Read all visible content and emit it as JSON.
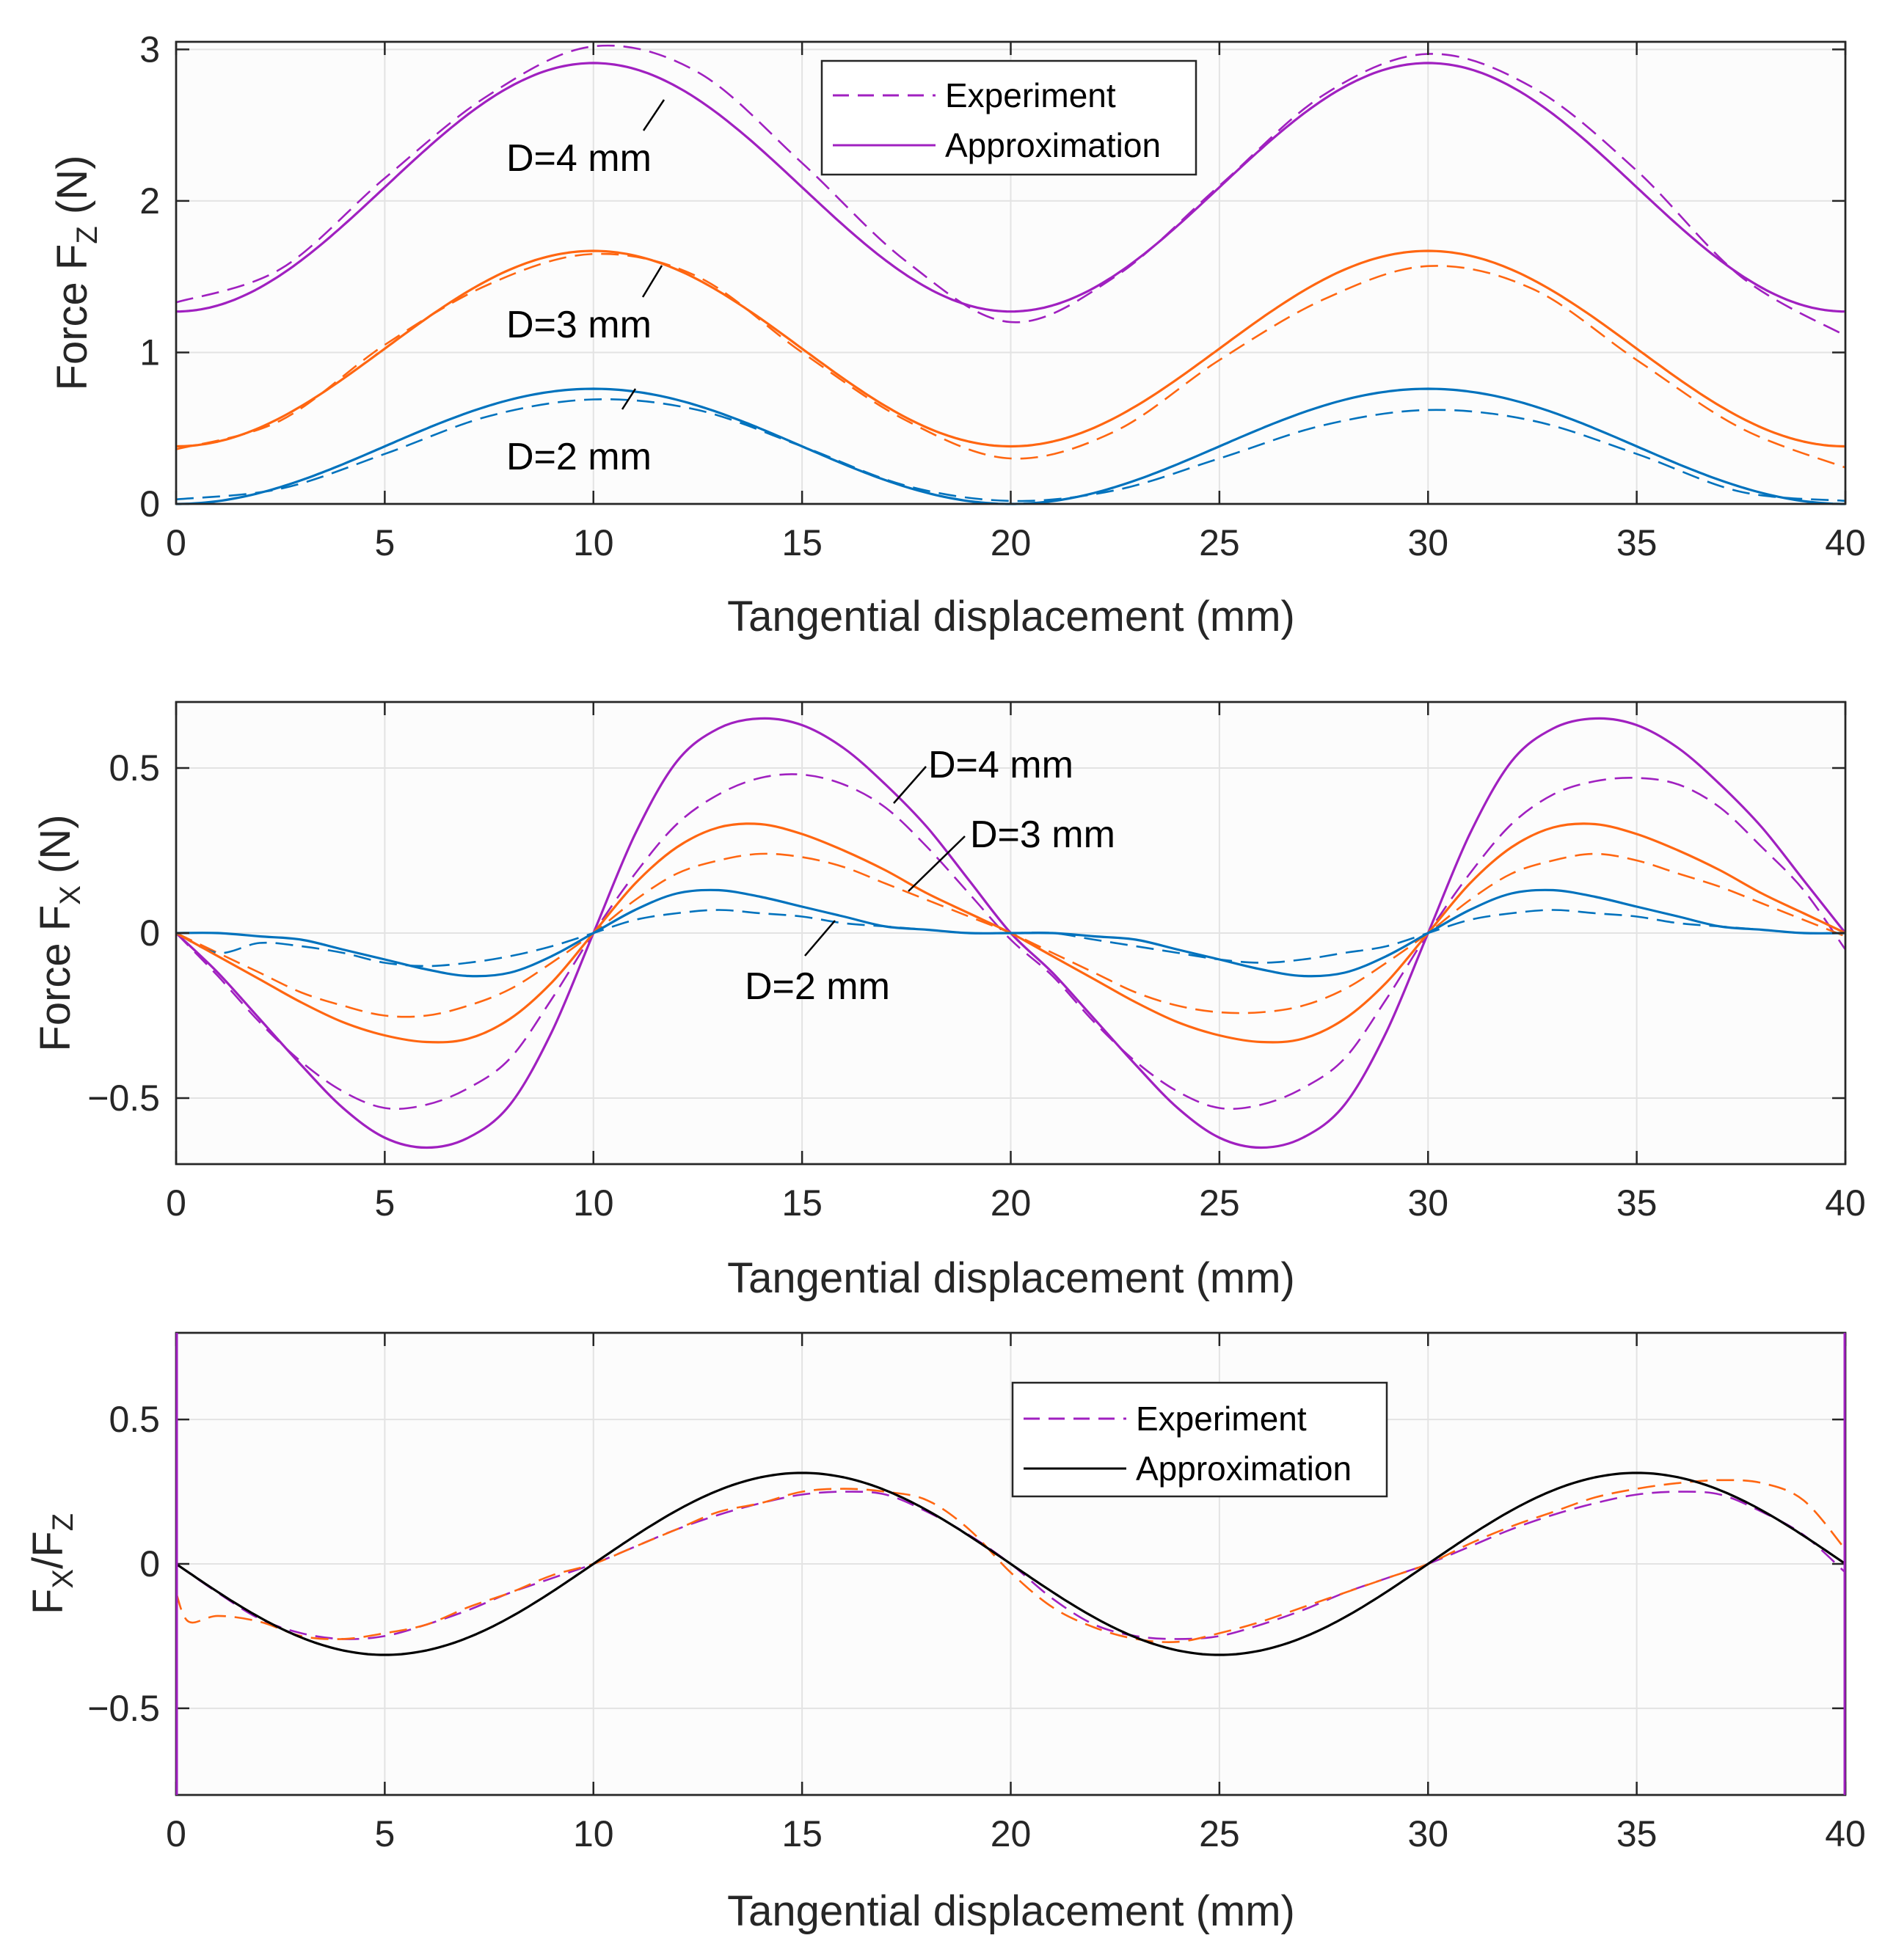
{
  "colors": {
    "d2": "#0072BD",
    "d3": "#FF6611",
    "d4": "#A020C0",
    "approx_black": "#000000",
    "axis": "#262626"
  },
  "chart_data": [
    {
      "type": "line",
      "ylabel_main": "Force F",
      "ylabel_sub": "Z",
      "ylabel_tail": " (N)",
      "xlabel": "Tangential displacement (mm)",
      "xlim": [
        0,
        40
      ],
      "ylim": [
        0,
        3.05
      ],
      "xticks": [
        0,
        5,
        10,
        15,
        20,
        25,
        30,
        35,
        40
      ],
      "yticks": [
        0,
        1,
        2,
        3
      ],
      "xtick_labels": [
        "0",
        "5",
        "10",
        "15",
        "20",
        "25",
        "30",
        "35",
        "40"
      ],
      "ytick_labels": [
        "0",
        "1",
        "2",
        "3"
      ],
      "legend": {
        "position": "top-center",
        "entries": [
          {
            "label": "Experiment",
            "style": "dashed",
            "color": "#A020C0"
          },
          {
            "label": "Approximation",
            "style": "solid",
            "color": "#A020C0"
          }
        ]
      },
      "annotations": [
        {
          "text": "D=4 mm"
        },
        {
          "text": "D=3 mm"
        },
        {
          "text": "D=2 mm"
        }
      ],
      "series": [
        {
          "name": "D=4 mm Approximation",
          "color": "#A020C0",
          "style": "solid",
          "model": "cosine",
          "min": 1.27,
          "max": 2.91,
          "period": 20,
          "phase_peak": 10
        },
        {
          "name": "D=4 mm Experiment",
          "color": "#A020C0",
          "style": "dashed",
          "x": [
            0,
            2.5,
            5,
            7.5,
            10,
            12.5,
            15,
            17.5,
            20,
            22.5,
            25,
            27.5,
            30,
            32.5,
            35,
            37.5,
            40
          ],
          "values": [
            1.33,
            1.55,
            2.15,
            2.7,
            3.02,
            2.85,
            2.25,
            1.6,
            1.2,
            1.5,
            2.1,
            2.7,
            2.97,
            2.75,
            2.2,
            1.5,
            1.11
          ]
        },
        {
          "name": "D=3 mm Approximation",
          "color": "#FF6611",
          "style": "solid",
          "model": "cosine",
          "min": 0.38,
          "max": 1.67,
          "period": 20,
          "phase_peak": 10
        },
        {
          "name": "D=3 mm Experiment",
          "color": "#FF6611",
          "style": "dashed",
          "x": [
            0,
            2.5,
            5,
            7.5,
            10,
            12.5,
            15,
            17.5,
            20,
            22.5,
            25,
            27.5,
            30,
            32.5,
            35,
            37.5,
            40
          ],
          "values": [
            0.36,
            0.55,
            1.05,
            1.45,
            1.65,
            1.5,
            1.0,
            0.55,
            0.3,
            0.48,
            0.95,
            1.35,
            1.57,
            1.42,
            0.95,
            0.5,
            0.24
          ]
        },
        {
          "name": "D=2 mm Approximation",
          "color": "#0072BD",
          "style": "solid",
          "model": "cosine",
          "min": 0.0,
          "max": 0.76,
          "period": 20,
          "phase_peak": 10
        },
        {
          "name": "D=2 mm Experiment",
          "color": "#0072BD",
          "style": "dashed",
          "x": [
            0,
            2.5,
            5,
            7.5,
            10,
            12.5,
            15,
            17.5,
            20,
            22.5,
            25,
            27.5,
            30,
            32.5,
            35,
            37.5,
            40
          ],
          "values": [
            0.03,
            0.1,
            0.33,
            0.58,
            0.69,
            0.62,
            0.38,
            0.12,
            0.02,
            0.09,
            0.3,
            0.52,
            0.62,
            0.55,
            0.33,
            0.08,
            0.02
          ]
        }
      ]
    },
    {
      "type": "line",
      "ylabel_main": "Force F",
      "ylabel_sub": "X",
      "ylabel_tail": "  (N)",
      "xlabel": "Tangential displacement (mm)",
      "xlim": [
        0,
        40
      ],
      "ylim": [
        -0.7,
        0.7
      ],
      "xticks": [
        0,
        5,
        10,
        15,
        20,
        25,
        30,
        35,
        40
      ],
      "yticks": [
        -0.5,
        0,
        0.5
      ],
      "xtick_labels": [
        "0",
        "5",
        "10",
        "15",
        "20",
        "25",
        "30",
        "35",
        "40"
      ],
      "ytick_labels": [
        "−0.5",
        "0",
        "0.5"
      ],
      "annotations": [
        {
          "text": "D=4 mm"
        },
        {
          "text": "D=3 mm"
        },
        {
          "text": "D=2 mm"
        }
      ],
      "series": [
        {
          "name": "D=4 mm Approximation",
          "color": "#A020C0",
          "style": "solid",
          "x": [
            0,
            1,
            2,
            3,
            4,
            5,
            6,
            7,
            8,
            9,
            10,
            11,
            12,
            13,
            14,
            15,
            16,
            17,
            18,
            19,
            20,
            21,
            22,
            23,
            24,
            25,
            26,
            27,
            28,
            29,
            30,
            31,
            32,
            33,
            34,
            35,
            36,
            37,
            38,
            39,
            40
          ],
          "values": [
            0,
            -0.12,
            -0.26,
            -0.4,
            -0.53,
            -0.62,
            -0.65,
            -0.62,
            -0.52,
            -0.3,
            0,
            0.3,
            0.52,
            0.62,
            0.65,
            0.63,
            0.56,
            0.45,
            0.32,
            0.16,
            0,
            -0.12,
            -0.26,
            -0.4,
            -0.53,
            -0.62,
            -0.65,
            -0.62,
            -0.52,
            -0.3,
            0,
            0.3,
            0.52,
            0.62,
            0.65,
            0.63,
            0.56,
            0.45,
            0.32,
            0.16,
            0
          ]
        },
        {
          "name": "D=4 mm Experiment",
          "color": "#A020C0",
          "style": "dashed",
          "x": [
            0,
            1,
            2,
            3,
            4,
            5,
            6,
            7,
            8,
            9,
            10,
            11,
            12,
            13,
            14,
            15,
            16,
            17,
            18,
            19,
            20,
            21,
            22,
            23,
            24,
            25,
            26,
            27,
            28,
            29,
            30,
            31,
            32,
            33,
            34,
            35,
            36,
            37,
            38,
            39,
            40
          ],
          "values": [
            0,
            -0.13,
            -0.27,
            -0.39,
            -0.48,
            -0.53,
            -0.52,
            -0.47,
            -0.38,
            -0.2,
            0,
            0.18,
            0.33,
            0.42,
            0.47,
            0.48,
            0.45,
            0.38,
            0.26,
            0.12,
            -0.02,
            -0.13,
            -0.27,
            -0.39,
            -0.48,
            -0.53,
            -0.52,
            -0.47,
            -0.38,
            -0.2,
            0,
            0.18,
            0.33,
            0.42,
            0.46,
            0.47,
            0.45,
            0.38,
            0.26,
            0.13,
            -0.05
          ]
        },
        {
          "name": "D=3 mm Approximation",
          "color": "#FF6611",
          "style": "solid",
          "x": [
            0,
            1,
            2,
            3,
            4,
            5,
            6,
            7,
            8,
            9,
            10,
            11,
            12,
            13,
            14,
            15,
            16,
            17,
            18,
            19,
            20,
            21,
            22,
            23,
            24,
            25,
            26,
            27,
            28,
            29,
            30,
            31,
            32,
            33,
            34,
            35,
            36,
            37,
            38,
            39,
            40
          ],
          "values": [
            0,
            -0.07,
            -0.14,
            -0.21,
            -0.27,
            -0.31,
            -0.33,
            -0.32,
            -0.26,
            -0.15,
            0,
            0.15,
            0.26,
            0.32,
            0.33,
            0.3,
            0.25,
            0.19,
            0.12,
            0.06,
            0,
            -0.07,
            -0.14,
            -0.21,
            -0.27,
            -0.31,
            -0.33,
            -0.32,
            -0.26,
            -0.15,
            0,
            0.15,
            0.26,
            0.32,
            0.33,
            0.3,
            0.25,
            0.19,
            0.12,
            0.06,
            0
          ]
        },
        {
          "name": "D=3 mm Experiment",
          "color": "#FF6611",
          "style": "dashed",
          "x": [
            0,
            1,
            2,
            3,
            4,
            5,
            6,
            7,
            8,
            9,
            10,
            11,
            12,
            13,
            14,
            15,
            16,
            17,
            18,
            19,
            20,
            21,
            22,
            23,
            24,
            25,
            26,
            27,
            28,
            29,
            30,
            31,
            32,
            33,
            34,
            35,
            36,
            37,
            38,
            39,
            40
          ],
          "values": [
            0,
            -0.06,
            -0.12,
            -0.18,
            -0.22,
            -0.25,
            -0.25,
            -0.22,
            -0.17,
            -0.09,
            0,
            0.1,
            0.18,
            0.22,
            0.24,
            0.23,
            0.2,
            0.15,
            0.1,
            0.05,
            0,
            -0.06,
            -0.12,
            -0.18,
            -0.22,
            -0.24,
            -0.24,
            -0.22,
            -0.17,
            -0.09,
            0,
            0.1,
            0.18,
            0.22,
            0.24,
            0.22,
            0.18,
            0.14,
            0.09,
            0.04,
            -0.01
          ]
        },
        {
          "name": "D=2 mm Approximation",
          "color": "#0072BD",
          "style": "solid",
          "x": [
            0,
            1,
            2,
            3,
            4,
            5,
            6,
            7,
            8,
            9,
            10,
            11,
            12,
            13,
            14,
            15,
            16,
            17,
            18,
            19,
            20,
            21,
            22,
            23,
            24,
            25,
            26,
            27,
            28,
            29,
            30,
            31,
            32,
            33,
            34,
            35,
            36,
            37,
            38,
            39,
            40
          ],
          "values": [
            0,
            0,
            -0.01,
            -0.02,
            -0.05,
            -0.08,
            -0.11,
            -0.13,
            -0.12,
            -0.07,
            0,
            0.07,
            0.12,
            0.13,
            0.11,
            0.08,
            0.05,
            0.02,
            0.01,
            0,
            0,
            0,
            -0.01,
            -0.02,
            -0.05,
            -0.08,
            -0.11,
            -0.13,
            -0.12,
            -0.07,
            0,
            0.07,
            0.12,
            0.13,
            0.11,
            0.08,
            0.05,
            0.02,
            0.01,
            0,
            0
          ]
        },
        {
          "name": "D=2 mm Experiment",
          "color": "#0072BD",
          "style": "dashed",
          "x": [
            0,
            1,
            2,
            3,
            4,
            5,
            6,
            7,
            8,
            9,
            10,
            11,
            12,
            13,
            14,
            15,
            16,
            17,
            18,
            19,
            20,
            21,
            22,
            23,
            24,
            25,
            26,
            27,
            28,
            29,
            30,
            31,
            32,
            33,
            34,
            35,
            36,
            37,
            38,
            39,
            40
          ],
          "values": [
            0,
            -0.06,
            -0.03,
            -0.04,
            -0.06,
            -0.09,
            -0.1,
            -0.09,
            -0.07,
            -0.04,
            0,
            0.04,
            0.06,
            0.07,
            0.06,
            0.05,
            0.03,
            0.02,
            0.01,
            0,
            0,
            0,
            -0.02,
            -0.04,
            -0.06,
            -0.08,
            -0.09,
            -0.08,
            -0.06,
            -0.04,
            0,
            0.04,
            0.06,
            0.07,
            0.06,
            0.05,
            0.03,
            0.02,
            0.01,
            0,
            0
          ]
        }
      ]
    },
    {
      "type": "line",
      "ylabel_main": "F",
      "ylabel_sub": "X",
      "ylabel_mid": "/F",
      "ylabel_sub2": "Z",
      "xlabel": "Tangential displacement (mm)",
      "xlim": [
        0,
        40
      ],
      "ylim": [
        -0.8,
        0.8
      ],
      "xticks": [
        0,
        5,
        10,
        15,
        20,
        25,
        30,
        35,
        40
      ],
      "yticks": [
        -0.5,
        0,
        0.5
      ],
      "xtick_labels": [
        "0",
        "5",
        "10",
        "15",
        "20",
        "25",
        "30",
        "35",
        "40"
      ],
      "ytick_labels": [
        "−0.5",
        "0",
        "0.5"
      ],
      "legend": {
        "position": "top-center",
        "entries": [
          {
            "label": "Experiment",
            "style": "dashed",
            "color": "#A020C0"
          },
          {
            "label": "Approximation",
            "style": "solid",
            "color": "#000000"
          }
        ]
      },
      "series": [
        {
          "name": "Approximation",
          "color": "#000000",
          "style": "solid",
          "model": "sine",
          "amplitude": 0.315,
          "period": 20,
          "sign": -1
        },
        {
          "name": "Experiment D=4",
          "color": "#A020C0",
          "style": "dashed",
          "x": [
            0,
            1,
            2,
            3,
            4,
            5,
            6,
            7,
            8,
            9,
            10,
            11,
            12,
            13,
            14,
            15,
            16,
            17,
            18,
            19,
            20,
            21,
            22,
            23,
            24,
            25,
            26,
            27,
            28,
            29,
            30,
            31,
            32,
            33,
            34,
            35,
            36,
            37,
            38,
            39,
            40
          ],
          "values": [
            0,
            -0.1,
            -0.19,
            -0.24,
            -0.26,
            -0.25,
            -0.21,
            -0.16,
            -0.1,
            -0.05,
            0,
            0.06,
            0.12,
            0.17,
            0.21,
            0.24,
            0.25,
            0.24,
            0.18,
            0.1,
            0,
            -0.12,
            -0.21,
            -0.25,
            -0.26,
            -0.25,
            -0.21,
            -0.16,
            -0.1,
            -0.05,
            0,
            0.06,
            0.12,
            0.17,
            0.21,
            0.24,
            0.25,
            0.24,
            0.18,
            0.1,
            -0.03
          ]
        },
        {
          "name": "Experiment D=3",
          "color": "#FF6611",
          "style": "dashed",
          "x": [
            0,
            0.3,
            1,
            2,
            3,
            4,
            5,
            6,
            7,
            8,
            9,
            10,
            11,
            12,
            13,
            14,
            15,
            16,
            17,
            18,
            19,
            20,
            21,
            22,
            23,
            24,
            25,
            26,
            27,
            28,
            29,
            30,
            31,
            32,
            33,
            34,
            35,
            36,
            37,
            38,
            39,
            40
          ],
          "values": [
            -0.1,
            -0.2,
            -0.18,
            -0.2,
            -0.25,
            -0.26,
            -0.24,
            -0.21,
            -0.15,
            -0.1,
            -0.04,
            0,
            0.06,
            0.12,
            0.18,
            0.21,
            0.25,
            0.26,
            0.25,
            0.22,
            0.12,
            -0.03,
            -0.15,
            -0.22,
            -0.26,
            -0.27,
            -0.24,
            -0.2,
            -0.15,
            -0.1,
            -0.05,
            0,
            0.07,
            0.13,
            0.18,
            0.23,
            0.26,
            0.28,
            0.29,
            0.28,
            0.22,
            0.05
          ]
        }
      ]
    }
  ]
}
